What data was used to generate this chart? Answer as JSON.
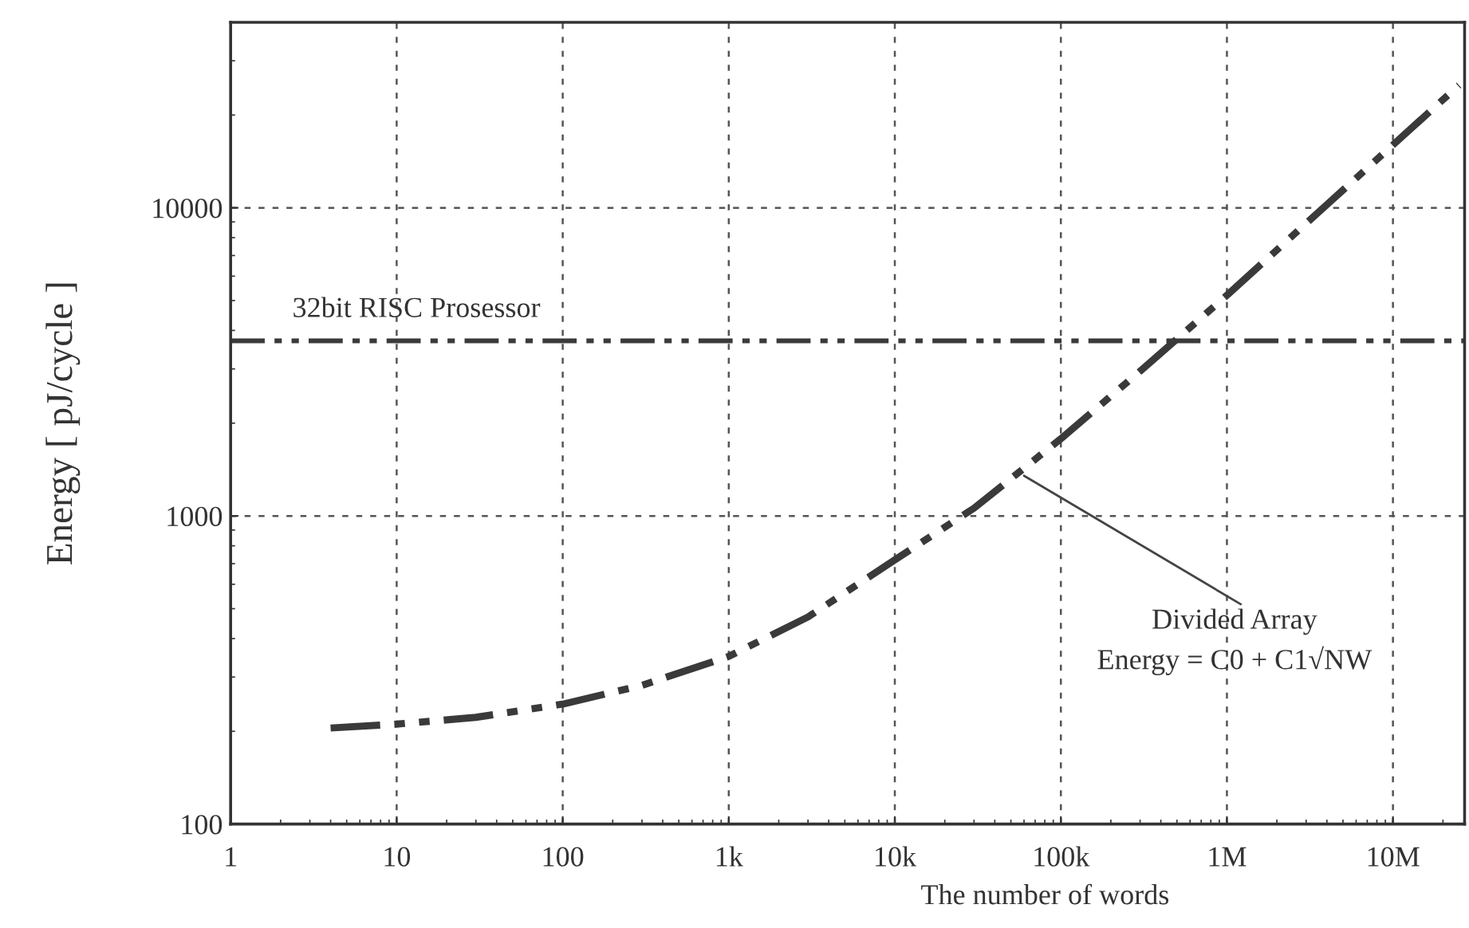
{
  "chart_data": {
    "type": "line",
    "xlabel": "The number of words",
    "ylabel": "Energy [ pJ/cycle ]",
    "log": "xy",
    "grid": true,
    "marker": "none",
    "line_style": "dashed",
    "x": [
      4,
      10,
      30,
      100,
      300,
      1000,
      3000,
      10000,
      30000,
      100000,
      300000,
      1000000,
      3000000,
      10000000,
      25000000
    ],
    "series": [
      {
        "color": "#3a3a3a",
        "values": [
          205,
          211,
          222,
          245,
          282,
          350,
          470,
          720,
          1060,
          1780,
          2950,
          5200,
          8900,
          16000,
          25000
        ]
      }
    ],
    "xlim": [
      1,
      27000000
    ],
    "xticks": [
      1,
      10,
      100,
      {
        "value": 1000,
        "label": "1k"
      },
      {
        "value": 10000,
        "label": "10k"
      },
      {
        "value": 100000,
        "label": "100k"
      },
      {
        "value": 1000000,
        "label": "1M"
      },
      {
        "value": 10000000,
        "label": "10M"
      }
    ],
    "ylim": [
      100,
      40000
    ],
    "yticks": [
      100,
      1000,
      10000
    ],
    "ref_lines": [
      {
        "axis": "y",
        "value": 3700,
        "label": "32bit RISC Prosessor",
        "color": "#3a3a3a",
        "line_style": "dashed"
      }
    ],
    "annotations": [
      {
        "text": "Divided Array\nEnergy = C0 + C1√NW",
        "x": 60000,
        "y": 1350
      }
    ]
  }
}
